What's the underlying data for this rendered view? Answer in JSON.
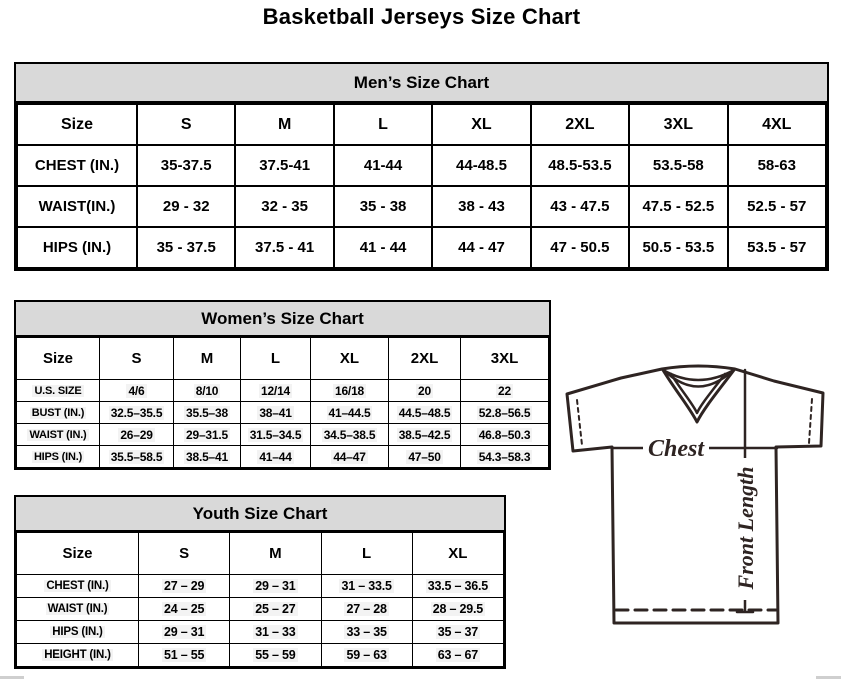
{
  "page": {
    "title": "Basketball Jerseys Size Chart"
  },
  "colors": {
    "band_background": "#d9d9d9",
    "border": "#000000",
    "jersey_stroke": "#2e2422",
    "value_highlight": "#f3f3f3",
    "scrollbar_fragment": "#cfcfcf"
  },
  "tables": {
    "men": {
      "title": "Men’s Size Chart",
      "columns": [
        "Size",
        "S",
        "M",
        "L",
        "XL",
        "2XL",
        "3XL",
        "4XL"
      ],
      "rows": [
        {
          "label": "CHEST (IN.)",
          "values": [
            "35-37.5",
            "37.5-41",
            "41-44",
            "44-48.5",
            "48.5-53.5",
            "53.5-58",
            "58-63"
          ]
        },
        {
          "label": "WAIST(IN.)",
          "values": [
            "29 - 32",
            "32 - 35",
            "35 - 38",
            "38 - 43",
            "43 - 47.5",
            "47.5 - 52.5",
            "52.5 - 57"
          ]
        },
        {
          "label": "HIPS (IN.)",
          "values": [
            "35 - 37.5",
            "37.5 - 41",
            "41 - 44",
            "44 - 47",
            "47 - 50.5",
            "50.5 - 53.5",
            "53.5 - 57"
          ]
        }
      ]
    },
    "women": {
      "title": "Women’s Size Chart",
      "columns": [
        "Size",
        "S",
        "M",
        "L",
        "XL",
        "2XL",
        "3XL"
      ],
      "rows": [
        {
          "label": "U.S. SIZE",
          "values": [
            "4/6",
            "8/10",
            "12/14",
            "16/18",
            "20",
            "22"
          ]
        },
        {
          "label": "BUST (IN.)",
          "values": [
            "32.5–35.5",
            "35.5–38",
            "38–41",
            "41–44.5",
            "44.5–48.5",
            "52.8–56.5"
          ]
        },
        {
          "label": "WAIST (IN.)",
          "values": [
            "26–29",
            "29–31.5",
            "31.5–34.5",
            "34.5–38.5",
            "38.5–42.5",
            "46.8–50.3"
          ]
        },
        {
          "label": "HIPS (IN.)",
          "values": [
            "35.5–58.5",
            "38.5–41",
            "41–44",
            "44–47",
            "47–50",
            "54.3–58.3"
          ]
        }
      ]
    },
    "youth": {
      "title": "Youth Size Chart",
      "columns": [
        "Size",
        "S",
        "M",
        "L",
        "XL"
      ],
      "rows": [
        {
          "label": "CHEST (IN.)",
          "values": [
            "27 – 29",
            "29 – 31",
            "31 – 33.5",
            "33.5 – 36.5"
          ]
        },
        {
          "label": "WAIST (IN.)",
          "values": [
            "24 – 25",
            "25 – 27",
            "27 – 28",
            "28 – 29.5"
          ]
        },
        {
          "label": "HIPS (IN.)",
          "values": [
            "29 – 31",
            "31 – 33",
            "33 – 35",
            "35 – 37"
          ]
        },
        {
          "label": "HEIGHT (IN.)",
          "values": [
            "51 – 55",
            "55 – 59",
            "59 – 63",
            "63 – 67"
          ]
        }
      ]
    }
  },
  "diagram": {
    "chest_label": "Chest",
    "front_length_label": "Front Length"
  }
}
